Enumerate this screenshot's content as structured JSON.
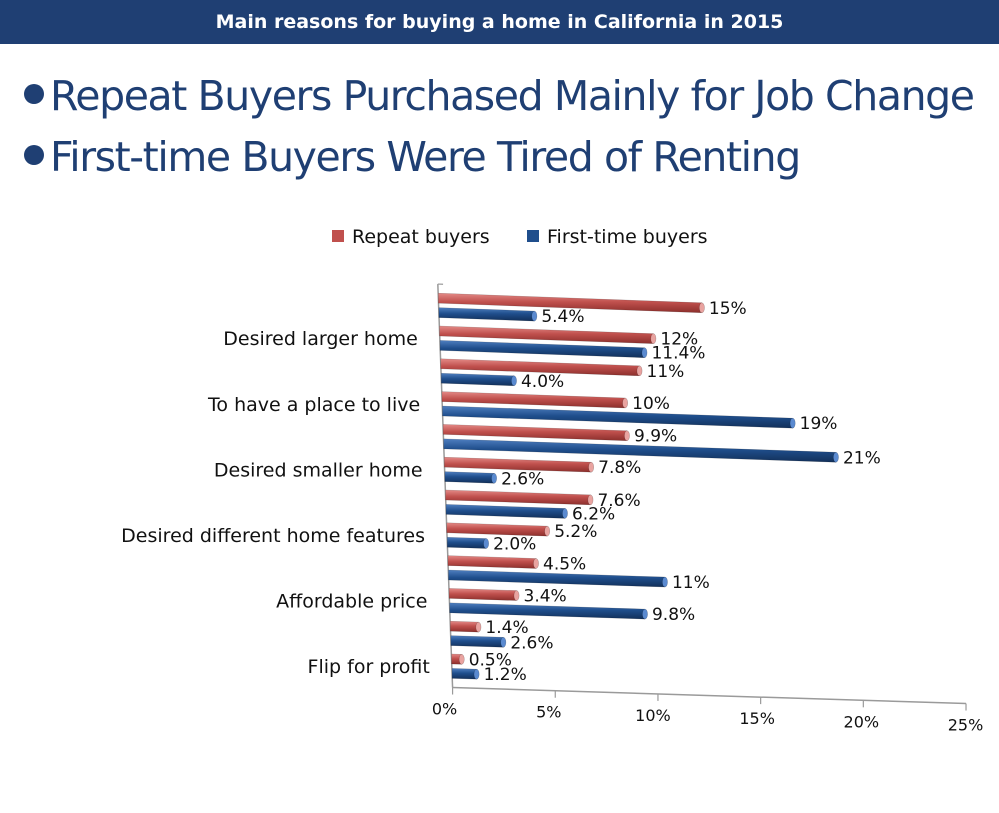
{
  "header": {
    "title": "Main reasons for buying a home in California in 2015"
  },
  "bullets": [
    "Repeat Buyers Purchased Mainly for Job Change",
    "First-time Buyers Were  Tired of Renting"
  ],
  "colors": {
    "header_bg": "#1f3f73",
    "repeat": "#c0504d",
    "first_time": "#1f4e8c"
  },
  "chart_data": {
    "type": "bar",
    "orientation": "horizontal",
    "legend_position": "top",
    "categories": [
      "",
      "Desired larger home",
      "",
      "To have a place to live",
      "",
      "Desired smaller home",
      "",
      "Desired different home features",
      "",
      "Affordable price",
      "",
      "Flip for profit"
    ],
    "series": [
      {
        "name": "Repeat buyers",
        "values": [
          15,
          12,
          11,
          10,
          9.9,
          7.8,
          7.6,
          5.2,
          4.5,
          3.4,
          1.4,
          0.5
        ],
        "labels": [
          "15%",
          "12%",
          "11%",
          "10%",
          "9.9%",
          "7.8%",
          "7.6%",
          "5.2%",
          "4.5%",
          "3.4%",
          "1.4%",
          "0.5%"
        ]
      },
      {
        "name": "First-time buyers",
        "values": [
          5.4,
          11.4,
          4.0,
          19,
          21,
          2.6,
          6.2,
          2.0,
          11,
          9.8,
          2.6,
          1.2
        ],
        "labels": [
          "5.4%",
          "11.4%",
          "4.0%",
          "19%",
          "21%",
          "2.6%",
          "6.2%",
          "2.0%",
          "11%",
          "9.8%",
          "2.6%",
          "1.2%"
        ]
      }
    ],
    "xlim": [
      0,
      25
    ],
    "x_ticks": [
      "0%",
      "5%",
      "10%",
      "15%",
      "20%",
      "25%"
    ]
  }
}
